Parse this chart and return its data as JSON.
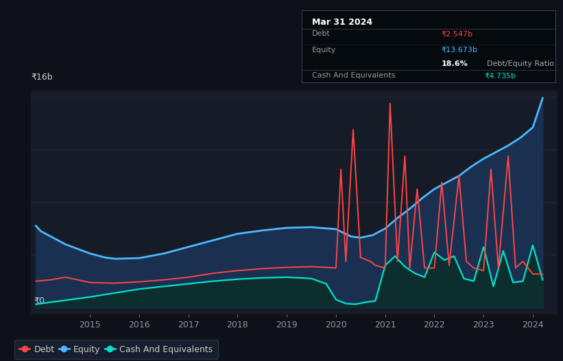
{
  "bg_color": "#0e1117",
  "plot_bg_color": "#161c27",
  "ylabel_top": "₹16b",
  "ylabel_bottom": "₹0",
  "debt_color": "#ff4444",
  "equity_color": "#4db8ff",
  "cash_color": "#00e5c8",
  "tooltip_title": "Mar 31 2024",
  "debt_label": "₹2.547b",
  "equity_label": "₹13.673b",
  "ratio_pct": "18.6%",
  "ratio_text": "Debt/Equity Ratio",
  "cash_label": "₹4.735b",
  "ylim_max": 16.5,
  "ylim_min": -0.5,
  "xlim_min": 2013.8,
  "xlim_max": 2024.5,
  "equity_fill_color": "#1a3050",
  "cash_fill_color": "#0d2e2e",
  "debt_data": [
    [
      2013.9,
      2.0
    ],
    [
      2014.2,
      2.1
    ],
    [
      2014.5,
      2.3
    ],
    [
      2015.0,
      1.9
    ],
    [
      2015.5,
      1.85
    ],
    [
      2016.0,
      1.95
    ],
    [
      2016.5,
      2.1
    ],
    [
      2017.0,
      2.3
    ],
    [
      2017.5,
      2.6
    ],
    [
      2018.0,
      2.8
    ],
    [
      2018.5,
      2.95
    ],
    [
      2019.0,
      3.05
    ],
    [
      2019.5,
      3.1
    ],
    [
      2019.8,
      3.05
    ],
    [
      2020.0,
      3.0
    ],
    [
      2020.1,
      10.5
    ],
    [
      2020.2,
      3.5
    ],
    [
      2020.35,
      13.5
    ],
    [
      2020.5,
      3.8
    ],
    [
      2020.7,
      3.5
    ],
    [
      2020.8,
      3.2
    ],
    [
      2021.0,
      3.0
    ],
    [
      2021.1,
      15.5
    ],
    [
      2021.25,
      3.5
    ],
    [
      2021.4,
      11.5
    ],
    [
      2021.5,
      3.0
    ],
    [
      2021.65,
      9.0
    ],
    [
      2021.8,
      3.0
    ],
    [
      2022.0,
      3.0
    ],
    [
      2022.15,
      9.5
    ],
    [
      2022.3,
      3.2
    ],
    [
      2022.5,
      10.0
    ],
    [
      2022.65,
      3.5
    ],
    [
      2022.8,
      3.0
    ],
    [
      2023.0,
      2.8
    ],
    [
      2023.15,
      10.5
    ],
    [
      2023.3,
      3.0
    ],
    [
      2023.5,
      11.5
    ],
    [
      2023.65,
      3.0
    ],
    [
      2023.8,
      3.5
    ],
    [
      2024.0,
      2.547
    ],
    [
      2024.2,
      2.547
    ]
  ],
  "equity_data": [
    [
      2013.9,
      6.2
    ],
    [
      2014.0,
      5.8
    ],
    [
      2014.5,
      4.8
    ],
    [
      2015.0,
      4.1
    ],
    [
      2015.3,
      3.8
    ],
    [
      2015.5,
      3.7
    ],
    [
      2016.0,
      3.75
    ],
    [
      2016.5,
      4.1
    ],
    [
      2017.0,
      4.6
    ],
    [
      2017.5,
      5.1
    ],
    [
      2018.0,
      5.6
    ],
    [
      2018.5,
      5.85
    ],
    [
      2019.0,
      6.05
    ],
    [
      2019.5,
      6.1
    ],
    [
      2020.0,
      5.95
    ],
    [
      2020.3,
      5.4
    ],
    [
      2020.5,
      5.3
    ],
    [
      2020.75,
      5.5
    ],
    [
      2021.0,
      6.0
    ],
    [
      2021.25,
      6.8
    ],
    [
      2021.5,
      7.5
    ],
    [
      2021.75,
      8.3
    ],
    [
      2022.0,
      9.0
    ],
    [
      2022.2,
      9.4
    ],
    [
      2022.5,
      10.0
    ],
    [
      2022.75,
      10.7
    ],
    [
      2023.0,
      11.3
    ],
    [
      2023.25,
      11.8
    ],
    [
      2023.5,
      12.3
    ],
    [
      2023.75,
      12.9
    ],
    [
      2024.0,
      13.673
    ],
    [
      2024.2,
      15.9
    ]
  ],
  "cash_data": [
    [
      2013.9,
      0.25
    ],
    [
      2014.0,
      0.3
    ],
    [
      2015.0,
      0.8
    ],
    [
      2015.5,
      1.1
    ],
    [
      2016.0,
      1.4
    ],
    [
      2016.5,
      1.6
    ],
    [
      2017.0,
      1.8
    ],
    [
      2017.5,
      2.0
    ],
    [
      2018.0,
      2.15
    ],
    [
      2018.5,
      2.25
    ],
    [
      2019.0,
      2.3
    ],
    [
      2019.5,
      2.2
    ],
    [
      2019.8,
      1.8
    ],
    [
      2020.0,
      0.6
    ],
    [
      2020.2,
      0.3
    ],
    [
      2020.4,
      0.25
    ],
    [
      2020.6,
      0.4
    ],
    [
      2020.8,
      0.5
    ],
    [
      2021.0,
      3.2
    ],
    [
      2021.2,
      3.9
    ],
    [
      2021.4,
      3.1
    ],
    [
      2021.6,
      2.6
    ],
    [
      2021.8,
      2.3
    ],
    [
      2022.0,
      4.2
    ],
    [
      2022.2,
      3.6
    ],
    [
      2022.4,
      3.9
    ],
    [
      2022.6,
      2.2
    ],
    [
      2022.8,
      2.0
    ],
    [
      2023.0,
      4.6
    ],
    [
      2023.2,
      1.6
    ],
    [
      2023.4,
      4.3
    ],
    [
      2023.6,
      1.9
    ],
    [
      2023.8,
      2.0
    ],
    [
      2024.0,
      4.735
    ],
    [
      2024.2,
      2.1
    ]
  ],
  "grid_color": "#253040",
  "legend_bg": "#1a2235",
  "legend_border": "#333a4a",
  "tick_color": "#8899aa",
  "label_color": "#cccccc"
}
